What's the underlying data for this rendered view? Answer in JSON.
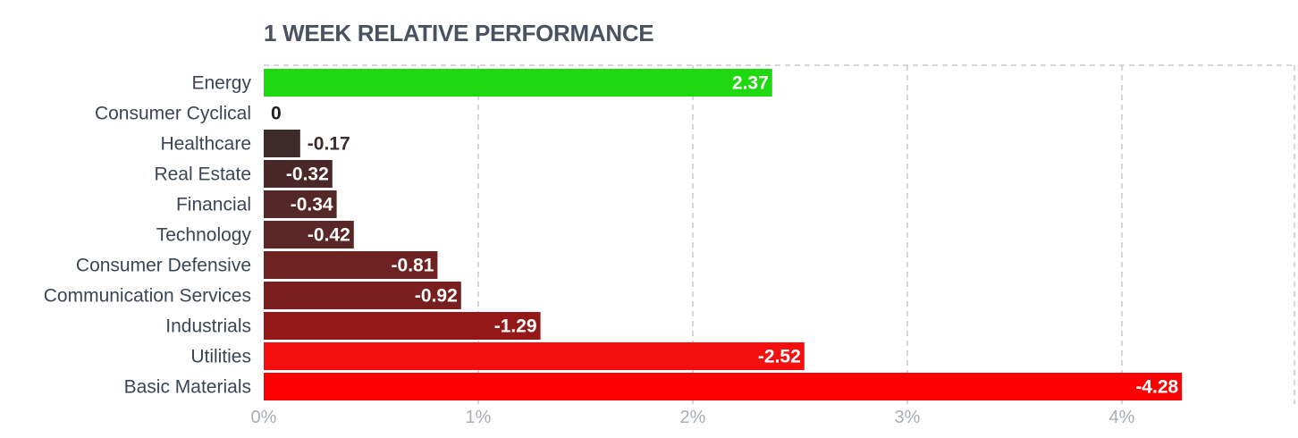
{
  "chart_data": {
    "type": "bar",
    "orientation": "horizontal",
    "title": "1 WEEK RELATIVE PERFORMANCE",
    "xlabel": "",
    "ylabel": "",
    "xlim": [
      0,
      4.8
    ],
    "x_ticks": [
      "0%",
      "1%",
      "2%",
      "3%",
      "4%"
    ],
    "x_tick_values": [
      0,
      1,
      2,
      3,
      4
    ],
    "grid": true,
    "categories": [
      "Energy",
      "Consumer Cyclical",
      "Healthcare",
      "Real Estate",
      "Financial",
      "Technology",
      "Consumer Defensive",
      "Communication Services",
      "Industrials",
      "Utilities",
      "Basic Materials"
    ],
    "values": [
      2.37,
      0,
      -0.17,
      -0.32,
      -0.34,
      -0.42,
      -0.81,
      -0.92,
      -1.29,
      -2.52,
      -4.28
    ],
    "value_labels": [
      "2.37",
      "0",
      "-0.17",
      "-0.32",
      "-0.34",
      "-0.42",
      "-0.81",
      "-0.92",
      "-1.29",
      "-2.52",
      "-4.28"
    ],
    "bar_colors": [
      "#1ed90f",
      "#3a3a3a",
      "#3d2a2a",
      "#4b2828",
      "#552828",
      "#5b2626",
      "#6e2222",
      "#7a1f1f",
      "#951818",
      "#f70f0f",
      "#ff0000"
    ]
  }
}
